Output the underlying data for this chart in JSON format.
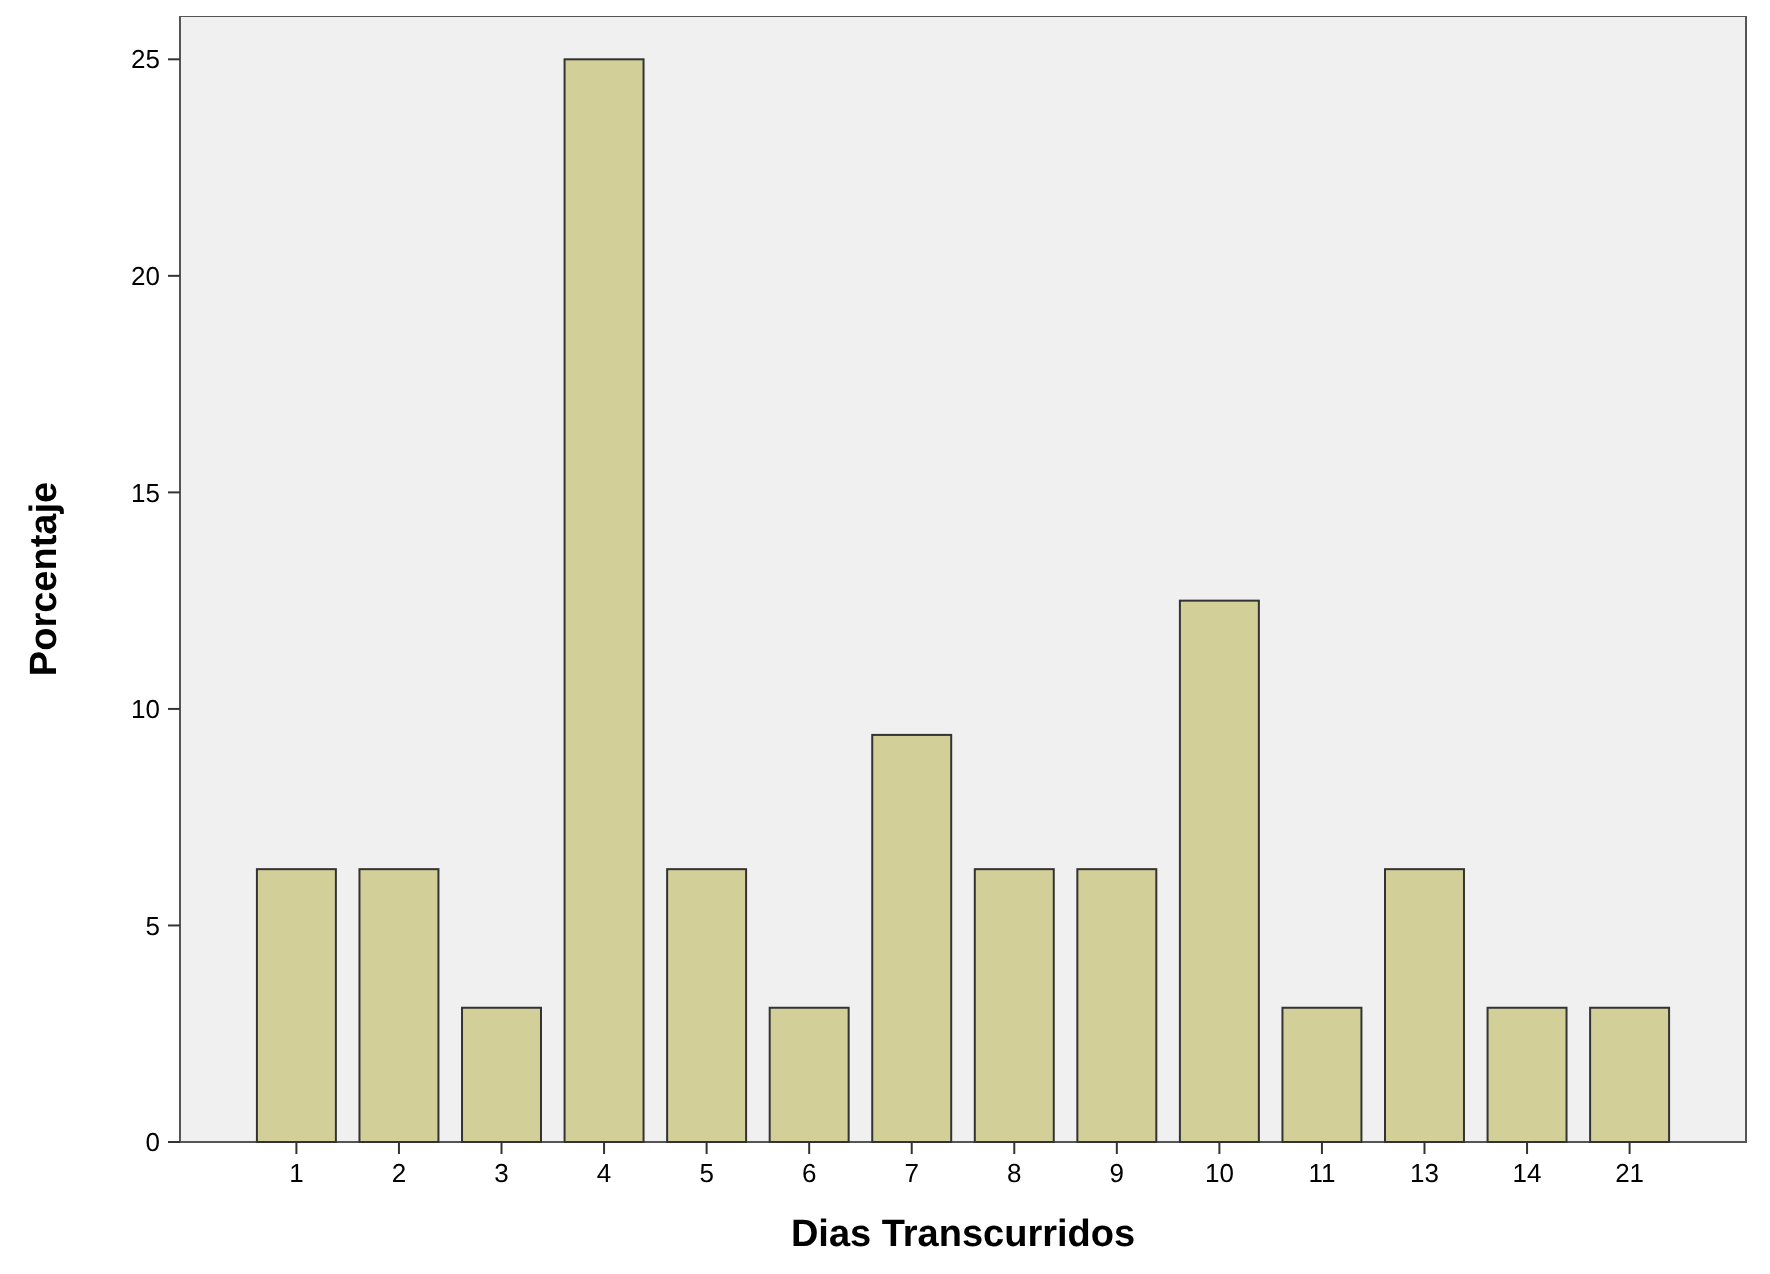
{
  "chart_data": {
    "type": "bar",
    "xlabel": "Dias Transcurridos",
    "ylabel": "Porcentaje",
    "categories": [
      "1",
      "2",
      "3",
      "4",
      "5",
      "6",
      "7",
      "8",
      "9",
      "10",
      "11",
      "13",
      "14",
      "21"
    ],
    "values": [
      6.3,
      6.3,
      3.1,
      25,
      6.3,
      3.1,
      9.4,
      6.3,
      6.3,
      12.5,
      3.1,
      6.3,
      3.1,
      3.1
    ],
    "color": "#d3cf98",
    "ylim": [
      0,
      26
    ],
    "yticks": [
      0,
      5,
      10,
      15,
      20,
      25
    ]
  }
}
